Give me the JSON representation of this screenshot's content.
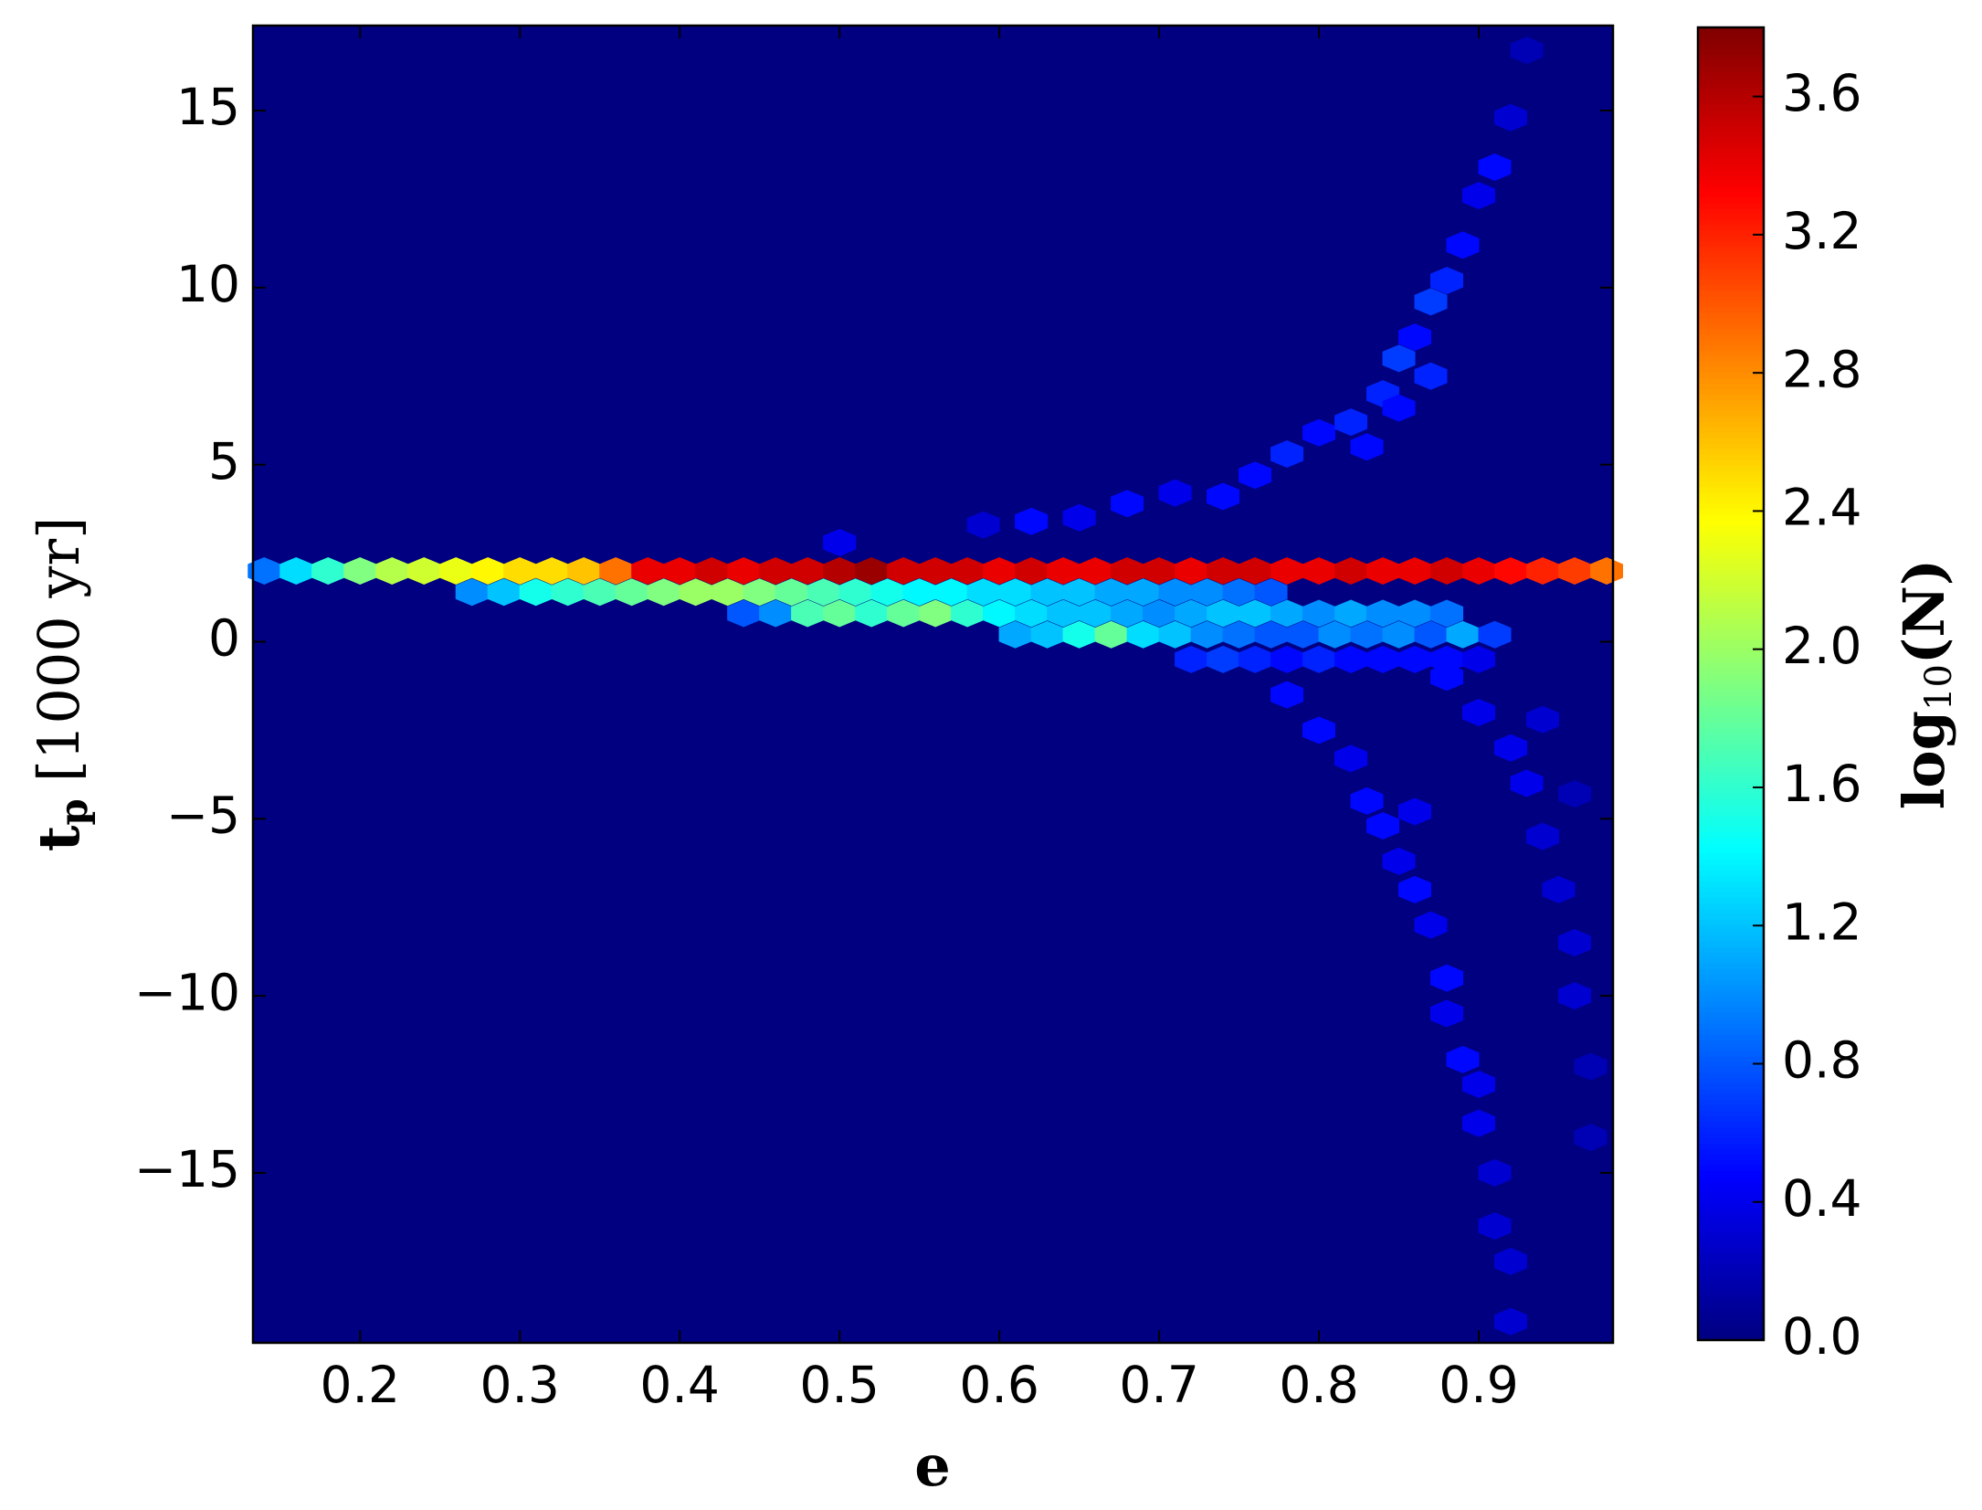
{
  "chart_data": {
    "type": "hexbin",
    "xlabel": "e",
    "ylabel": {
      "main": "t",
      "sub": "p",
      "unit": "[1000 yr]"
    },
    "clabel": {
      "main": "log",
      "sub": "10",
      "unit": "(N)"
    },
    "cmap": "jet",
    "xlim": [
      0.133,
      0.984
    ],
    "ylim": [
      -19.8,
      17.4
    ],
    "clim": [
      0,
      3.8
    ],
    "xticks": [
      0.2,
      0.3,
      0.4,
      0.5,
      0.6,
      0.7,
      0.8,
      0.9
    ],
    "yticks": [
      {
        "value": -15,
        "label": "−15"
      },
      {
        "value": -10,
        "label": "−10"
      },
      {
        "value": -5,
        "label": "−5"
      },
      0,
      5,
      10,
      15
    ],
    "cticks": [
      {
        "value": 0,
        "label": "0.0"
      },
      0.4,
      0.8,
      1.2,
      1.6,
      {
        "value": 2,
        "label": "2.0"
      },
      2.4,
      2.8,
      3.2,
      3.6
    ],
    "x": [
      0.14,
      0.16,
      0.18,
      0.2,
      0.22,
      0.24,
      0.26,
      0.28,
      0.3,
      0.32,
      0.34,
      0.36,
      0.38,
      0.4,
      0.42,
      0.44,
      0.46,
      0.48,
      0.5,
      0.52,
      0.54,
      0.56,
      0.58,
      0.6,
      0.62,
      0.64,
      0.66,
      0.68,
      0.7,
      0.72,
      0.74,
      0.76,
      0.78,
      0.8,
      0.82,
      0.84,
      0.86,
      0.88,
      0.9,
      0.92,
      0.94,
      0.96,
      0.98,
      0.27,
      0.29,
      0.31,
      0.33,
      0.35,
      0.37,
      0.39,
      0.41,
      0.43,
      0.45,
      0.47,
      0.49,
      0.51,
      0.53,
      0.55,
      0.57,
      0.59,
      0.61,
      0.63,
      0.65,
      0.67,
      0.69,
      0.71,
      0.73,
      0.75,
      0.77,
      0.44,
      0.46,
      0.48,
      0.5,
      0.52,
      0.54,
      0.56,
      0.58,
      0.6,
      0.62,
      0.64,
      0.66,
      0.68,
      0.7,
      0.72,
      0.74,
      0.76,
      0.78,
      0.8,
      0.82,
      0.84,
      0.86,
      0.88,
      0.61,
      0.63,
      0.65,
      0.67,
      0.69,
      0.71,
      0.73,
      0.75,
      0.77,
      0.79,
      0.81,
      0.83,
      0.85,
      0.87,
      0.89,
      0.91,
      0.72,
      0.74,
      0.76,
      0.78,
      0.8,
      0.82,
      0.84,
      0.86,
      0.88,
      0.9,
      0.5,
      0.59,
      0.62,
      0.65,
      0.68,
      0.71,
      0.74,
      0.76,
      0.78,
      0.8,
      0.82,
      0.83,
      0.84,
      0.85,
      0.85,
      0.86,
      0.87,
      0.87,
      0.88,
      0.89,
      0.9,
      0.91,
      0.92,
      0.93,
      0.78,
      0.8,
      0.82,
      0.86,
      0.83,
      0.84,
      0.85,
      0.86,
      0.87,
      0.88,
      0.88,
      0.89,
      0.9,
      0.9,
      0.91,
      0.91,
      0.92,
      0.92,
      0.88,
      0.9,
      0.92,
      0.94,
      0.93,
      0.94,
      0.95,
      0.96,
      0.96,
      0.97,
      0.97,
      0.96
    ],
    "y": [
      2,
      2,
      2,
      2,
      2,
      2,
      2,
      2,
      2,
      2,
      2,
      2,
      2,
      2,
      2,
      2,
      2,
      2,
      2,
      2,
      2,
      2,
      2,
      2,
      2,
      2,
      2,
      2,
      2,
      2,
      2,
      2,
      2,
      2,
      2,
      2,
      2,
      2,
      2,
      2,
      2,
      2,
      2,
      1.4,
      1.4,
      1.4,
      1.4,
      1.4,
      1.4,
      1.4,
      1.4,
      1.4,
      1.4,
      1.4,
      1.4,
      1.4,
      1.4,
      1.4,
      1.4,
      1.4,
      1.4,
      1.4,
      1.4,
      1.4,
      1.4,
      1.4,
      1.4,
      1.4,
      1.4,
      0.8,
      0.8,
      0.8,
      0.8,
      0.8,
      0.8,
      0.8,
      0.8,
      0.8,
      0.8,
      0.8,
      0.8,
      0.8,
      0.8,
      0.8,
      0.8,
      0.8,
      0.8,
      0.8,
      0.8,
      0.8,
      0.8,
      0.8,
      0.2,
      0.2,
      0.2,
      0.2,
      0.2,
      0.2,
      0.2,
      0.2,
      0.2,
      0.2,
      0.2,
      0.2,
      0.2,
      0.2,
      0.2,
      0.2,
      -0.5,
      -0.5,
      -0.5,
      -0.5,
      -0.5,
      -0.5,
      -0.5,
      -0.5,
      -0.5,
      -0.5,
      2.8,
      3.3,
      3.4,
      3.5,
      3.9,
      4.2,
      4.1,
      4.7,
      5.3,
      5.9,
      6.2,
      5.5,
      7.0,
      6.6,
      8.0,
      8.6,
      7.5,
      9.6,
      10.2,
      11.2,
      12.6,
      13.4,
      14.8,
      16.7,
      -1.5,
      -2.5,
      -3.3,
      -4.8,
      -4.5,
      -5.2,
      -6.2,
      -7.0,
      -8.0,
      -9.5,
      -10.5,
      -11.8,
      -12.5,
      -13.6,
      -15.0,
      -16.5,
      -17.5,
      -19.2,
      -1.0,
      -2.0,
      -3.0,
      -2.2,
      -4.0,
      -5.5,
      -7.0,
      -8.5,
      -10.0,
      -12.0,
      -14.0,
      -4.3
    ],
    "values": [
      0.9,
      1.3,
      1.6,
      1.9,
      2.1,
      2.2,
      2.3,
      2.4,
      2.5,
      2.5,
      2.6,
      2.9,
      3.4,
      3.4,
      3.5,
      3.4,
      3.5,
      3.5,
      3.6,
      3.7,
      3.5,
      3.5,
      3.5,
      3.4,
      3.5,
      3.4,
      3.4,
      3.5,
      3.5,
      3.4,
      3.5,
      3.5,
      3.4,
      3.4,
      3.5,
      3.4,
      3.4,
      3.5,
      3.4,
      3.3,
      3.2,
      3.1,
      2.9,
      1.0,
      1.2,
      1.5,
      1.6,
      1.7,
      1.8,
      1.9,
      2.0,
      2.0,
      1.9,
      1.8,
      1.7,
      1.6,
      1.5,
      1.4,
      1.4,
      1.3,
      1.3,
      1.2,
      1.2,
      1.1,
      1.1,
      1.0,
      1.0,
      0.9,
      0.8,
      0.8,
      1.0,
      1.7,
      1.8,
      1.6,
      1.8,
      1.9,
      1.6,
      1.4,
      1.3,
      1.2,
      1.2,
      1.1,
      1.0,
      1.1,
      1.2,
      1.2,
      1.1,
      1.0,
      1.1,
      1.0,
      1.0,
      0.9,
      1.1,
      1.2,
      1.5,
      1.8,
      1.3,
      1.2,
      1.0,
      0.9,
      0.8,
      0.8,
      1.0,
      0.9,
      1.0,
      0.8,
      1.1,
      0.7,
      0.6,
      0.7,
      0.6,
      0.5,
      0.6,
      0.5,
      0.5,
      0.5,
      0.5,
      0.4,
      0.4,
      0.3,
      0.5,
      0.4,
      0.5,
      0.4,
      0.5,
      0.5,
      0.6,
      0.5,
      0.6,
      0.5,
      0.6,
      0.5,
      0.7,
      0.5,
      0.6,
      0.7,
      0.6,
      0.5,
      0.4,
      0.5,
      0.3,
      0.2,
      0.5,
      0.5,
      0.4,
      0.4,
      0.5,
      0.5,
      0.4,
      0.5,
      0.4,
      0.5,
      0.4,
      0.5,
      0.4,
      0.4,
      0.3,
      0.3,
      0.3,
      0.3,
      0.5,
      0.4,
      0.4,
      0.3,
      0.4,
      0.3,
      0.3,
      0.3,
      0.3,
      0.2,
      0.2,
      0.2
    ]
  }
}
